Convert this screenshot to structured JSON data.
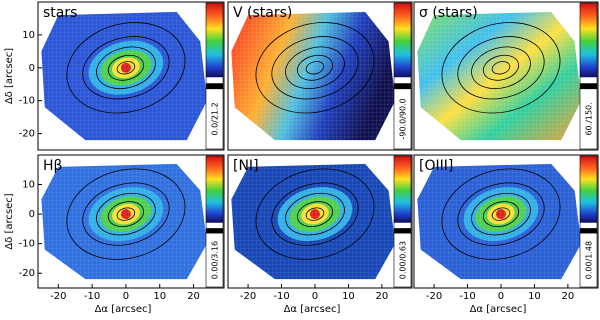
{
  "chart_data": [
    {
      "type": "map",
      "title": "stars",
      "colorbar_label": "0.0/21.2",
      "xlim": [
        -26,
        29
      ],
      "ylim": [
        -25,
        20
      ],
      "yticks": [
        -20,
        -10,
        0,
        10
      ],
      "ylabel": "Δδ [arcsec]"
    },
    {
      "type": "map",
      "title": "V (stars)",
      "colorbar_label": "-90.0/90.0",
      "xlim": [
        -26,
        29
      ],
      "ylim": [
        -25,
        20
      ]
    },
    {
      "type": "map",
      "title": "σ (stars)",
      "colorbar_label": "60./150.",
      "xlim": [
        -26,
        29
      ],
      "ylim": [
        -25,
        20
      ]
    },
    {
      "type": "map",
      "title": "Hβ",
      "colorbar_label": "0.00/3.16",
      "xlim": [
        -26,
        29
      ],
      "ylim": [
        -25,
        20
      ],
      "xticks": [
        -20,
        -10,
        0,
        10,
        20
      ],
      "yticks": [
        -20,
        -10,
        0,
        10
      ],
      "xlabel": "Δα [arcsec]",
      "ylabel": "Δδ [arcsec]"
    },
    {
      "type": "map",
      "title": "[NI]",
      "colorbar_label": "0.00/0.63",
      "xlim": [
        -26,
        29
      ],
      "ylim": [
        -25,
        20
      ],
      "xticks": [
        -20,
        -10,
        0,
        10,
        20
      ],
      "xlabel": "Δα [arcsec]"
    },
    {
      "type": "map",
      "title": "[OIII]",
      "colorbar_label": "0.00/1.48",
      "xlim": [
        -26,
        29
      ],
      "ylim": [
        -25,
        20
      ],
      "xticks": [
        -20,
        -10,
        0,
        10,
        20
      ],
      "xlabel": "Δα [arcsec]"
    }
  ]
}
